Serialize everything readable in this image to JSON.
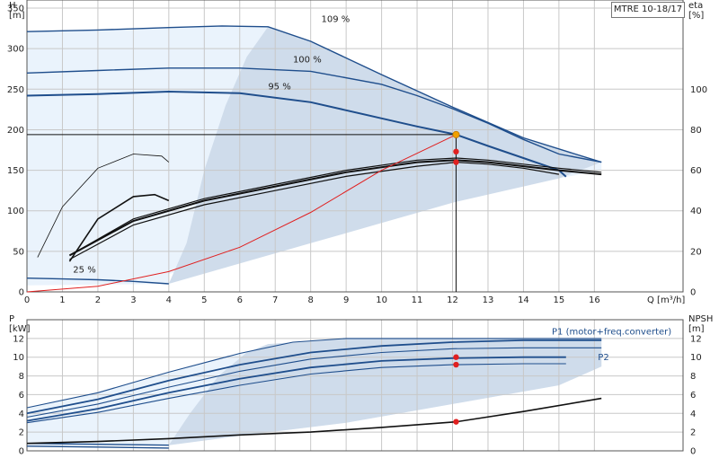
{
  "model": "MTRE 10-18/17",
  "colors": {
    "dark_blue": "#1f4e8c",
    "mid_blue": "#2a63a8",
    "light_fill": "#eaf3fc",
    "mid_fill": "#cfdceb",
    "grid": "#c8c8c8",
    "red": "#e02020",
    "operating_point": "#f0a000"
  },
  "chart_data": [
    {
      "type": "line",
      "title": "",
      "xlabel": "Q [m³/h]",
      "ylabel": "H\n[m]",
      "y2label": "eta\n[%]",
      "xlim": [
        0,
        18.5
      ],
      "ylim": [
        0,
        360
      ],
      "y2lim": [
        0,
        144
      ],
      "x_ticks": [
        0,
        1,
        2,
        3,
        4,
        5,
        6,
        7,
        8,
        9,
        10,
        11,
        12,
        13,
        14,
        15,
        16
      ],
      "x_tick_labels": [
        "0",
        "1",
        "2",
        "3",
        "4",
        "5",
        "6",
        "7",
        "8",
        "9",
        "10",
        "11",
        "12",
        "13",
        "14",
        "15",
        "16"
      ],
      "y_ticks": [
        0,
        50,
        100,
        150,
        200,
        250,
        300,
        350
      ],
      "y_tick_labels": [
        "0",
        "50",
        "100",
        "150",
        "200",
        "250",
        "300",
        "350"
      ],
      "y2_ticks": [
        0,
        20,
        40,
        60,
        80,
        100
      ],
      "y2_tick_labels": [
        "0",
        "20",
        "40",
        "60",
        "80",
        "100"
      ],
      "grid": true,
      "head_curves": [
        {
          "label": "109 %",
          "label_at": [
            8.3,
            333
          ],
          "x": [
            0,
            2,
            4,
            5.5,
            6.8,
            8,
            10,
            12,
            14,
            16.2
          ],
          "y": [
            321,
            323,
            326,
            328,
            327,
            309,
            268,
            228,
            190,
            160
          ]
        },
        {
          "label": "100 %",
          "label_at": [
            7.5,
            283
          ],
          "x": [
            0,
            2,
            4,
            6,
            8,
            10,
            11,
            12,
            13,
            14,
            15,
            16.2
          ],
          "y": [
            270,
            273,
            276,
            276,
            272,
            256,
            242,
            226,
            208,
            188,
            170,
            160
          ]
        },
        {
          "label": "95 %",
          "label_at": [
            6.8,
            250
          ],
          "x": [
            0,
            2,
            4,
            6,
            8,
            10,
            11,
            12.1,
            13,
            14,
            15,
            15.2
          ],
          "y": [
            242,
            244,
            247,
            245,
            234,
            214,
            204,
            194,
            180,
            165,
            150,
            142
          ]
        },
        {
          "label": "25 %",
          "label_at": [
            1.3,
            24
          ],
          "x": [
            0,
            1,
            2,
            3,
            4
          ],
          "y": [
            17,
            16,
            15,
            13,
            10
          ]
        }
      ],
      "efficiency_curves_eta": [
        {
          "x": [
            1.2,
            3,
            5,
            7,
            9,
            11,
            12.1,
            13,
            14,
            15,
            16.2
          ],
          "y": [
            18,
            36,
            46,
            53,
            60,
            65,
            66,
            65,
            63,
            61,
            59
          ]
        },
        {
          "x": [
            1.2,
            3,
            5,
            7,
            9,
            11,
            12.1,
            13,
            14,
            15,
            16.2
          ],
          "y": [
            18,
            35,
            45,
            52,
            59,
            64,
            65,
            64,
            62,
            60,
            58
          ]
        },
        {
          "x": [
            1.2,
            3,
            5,
            7,
            9,
            11,
            12.1,
            13,
            14,
            15
          ],
          "y": [
            16,
            33,
            43,
            50,
            57,
            62,
            64,
            63,
            61,
            58
          ]
        }
      ],
      "small_efficiency_curves_eta": [
        {
          "x": [
            0.3,
            1,
            2,
            3,
            3.8,
            4
          ],
          "y": [
            17,
            42,
            61,
            68,
            67,
            64
          ]
        },
        {
          "x": [
            1.2,
            2,
            3,
            3.6,
            4
          ],
          "y": [
            15,
            36,
            47,
            48,
            45
          ]
        }
      ],
      "system_curve": {
        "x": [
          0,
          2,
          4,
          6,
          8,
          10,
          12.1
        ],
        "y": [
          0,
          7,
          25,
          55,
          98,
          150,
          194
        ]
      },
      "operating_point": {
        "q": 12.1,
        "h": 194
      },
      "markers_eta": [
        {
          "q": 12.1,
          "eta": 65
        },
        {
          "q": 12.1,
          "eta": 64.5
        }
      ],
      "markers_h": [
        {
          "q": 12.1,
          "h": 173
        },
        {
          "q": 12.1,
          "h": 160
        }
      ]
    },
    {
      "type": "line",
      "title": "",
      "ylabel": "P\n[kW]",
      "y2label": "NPSH\n[m]",
      "xlim": [
        0,
        18.5
      ],
      "ylim": [
        0,
        14
      ],
      "y_ticks": [
        0,
        2,
        4,
        6,
        8,
        10,
        12
      ],
      "y_tick_labels": [
        "0",
        "2",
        "4",
        "6",
        "8",
        "10",
        "12"
      ],
      "y2_ticks": [
        0,
        2,
        4,
        6,
        8,
        10,
        12
      ],
      "y2_tick_labels": [
        "0",
        "2",
        "4",
        "6",
        "8",
        "10",
        "12"
      ],
      "grid": true,
      "legend_labels": [
        {
          "text": "P1 (motor+freq.converter)",
          "at": [
            14.8,
            12.4
          ]
        },
        {
          "text": "P2",
          "at": [
            16.1,
            9.7
          ]
        }
      ],
      "power_curves": [
        {
          "x": [
            0,
            2,
            4,
            6,
            7.5,
            9,
            11,
            13,
            15,
            16.2
          ],
          "y": [
            4.6,
            6.2,
            8.4,
            10.4,
            11.6,
            12.0,
            12.0,
            12.0,
            12.0,
            12.0
          ]
        },
        {
          "x": [
            0,
            2,
            4,
            6,
            8,
            10,
            12,
            14,
            16.2
          ],
          "y": [
            4.0,
            5.5,
            7.5,
            9.2,
            10.5,
            11.2,
            11.6,
            11.8,
            11.8
          ]
        },
        {
          "x": [
            0,
            2,
            4,
            6,
            8,
            10,
            12,
            14,
            16.2
          ],
          "y": [
            3.6,
            5.0,
            6.8,
            8.5,
            9.8,
            10.5,
            10.9,
            11.0,
            11.0
          ]
        },
        {
          "x": [
            0,
            2,
            4,
            6,
            8,
            10,
            12,
            14,
            15.2
          ],
          "y": [
            3.2,
            4.5,
            6.2,
            7.7,
            8.9,
            9.6,
            9.9,
            10.0,
            10.0
          ]
        },
        {
          "x": [
            0,
            2,
            4,
            6,
            8,
            10,
            12,
            14,
            15.2
          ],
          "y": [
            3.0,
            4.1,
            5.6,
            7.0,
            8.2,
            8.9,
            9.2,
            9.3,
            9.3
          ]
        }
      ],
      "low_power_curves": [
        {
          "x": [
            0,
            2,
            4
          ],
          "y": [
            0.8,
            0.7,
            0.6
          ]
        },
        {
          "x": [
            0,
            2,
            4
          ],
          "y": [
            0.5,
            0.4,
            0.3
          ]
        }
      ],
      "npsh_curve": {
        "x": [
          0,
          2,
          4,
          6,
          8,
          10,
          12.1,
          14,
          16.2
        ],
        "y": [
          0.8,
          1.0,
          1.3,
          1.7,
          2.0,
          2.5,
          3.1,
          4.2,
          5.6
        ]
      },
      "markers_p": [
        {
          "q": 12.1,
          "p": 10.0
        },
        {
          "q": 12.1,
          "p": 9.2
        }
      ],
      "marker_npsh": {
        "q": 12.1,
        "npsh": 3.1
      }
    }
  ]
}
